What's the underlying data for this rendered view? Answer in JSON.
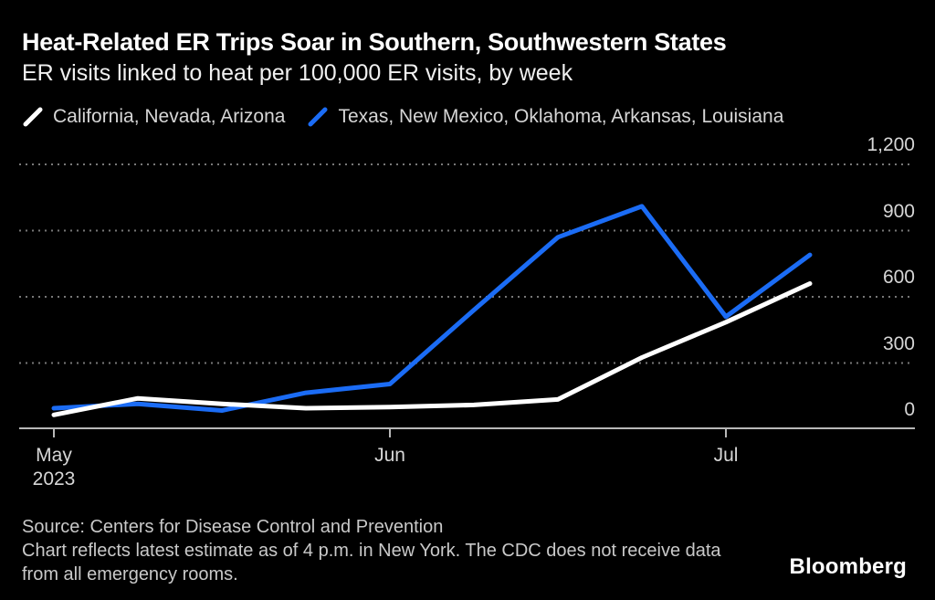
{
  "header": {
    "title": "Heat-Related ER Trips Soar in Southern, Southwestern States",
    "subtitle": "ER visits linked to heat per 100,000 ER visits, by week"
  },
  "legend": {
    "items": [
      {
        "label": "California, Nevada, Arizona",
        "color": "#ffffff"
      },
      {
        "label": "Texas, New Mexico, Oklahoma, Arkansas, Louisiana",
        "color": "#1b6cf5"
      }
    ]
  },
  "chart_data": {
    "type": "line",
    "title": "Heat-Related ER Trips Soar in Southern, Southwestern States",
    "subtitle": "ER visits linked to heat per 100,000 ER visits, by week",
    "x_unit": "week",
    "n_points": 10,
    "series": [
      {
        "name": "California, Nevada, Arizona",
        "color": "#ffffff",
        "values": [
          65,
          140,
          115,
          95,
          100,
          110,
          135,
          325,
          485,
          660
        ]
      },
      {
        "name": "Texas, New Mexico, Oklahoma, Arkansas, Louisiana",
        "color": "#1b6cf5",
        "values": [
          95,
          115,
          85,
          165,
          205,
          540,
          870,
          1010,
          510,
          790
        ]
      }
    ],
    "y_axis": {
      "side": "right",
      "range": [
        0,
        1200
      ],
      "ticks": [
        {
          "value": 0,
          "label": "0"
        },
        {
          "value": 300,
          "label": "300"
        },
        {
          "value": 600,
          "label": "600"
        },
        {
          "value": 900,
          "label": "900"
        },
        {
          "value": 1200,
          "label": "1,200"
        }
      ],
      "gridlines": "dotted"
    },
    "x_axis": {
      "ticks": [
        {
          "label": "May",
          "sublabel": "2023",
          "index": 0
        },
        {
          "label": "Jun",
          "sublabel": "",
          "index": 4
        },
        {
          "label": "Jul",
          "sublabel": "",
          "index": 8
        }
      ]
    },
    "legend_position": "top"
  },
  "footer": {
    "source": "Source: Centers for Disease Control and Prevention",
    "note_line1": "Chart reflects latest estimate as of 4 p.m. in New York. The CDC does not receive data",
    "note_line2": "from all emergency rooms.",
    "brand": "Bloomberg"
  },
  "colors": {
    "background": "#000000",
    "grid": "#787878",
    "axis": "#b8b8b8",
    "tick_label": "#d6d6d6",
    "footer_text": "#c9c9c9"
  }
}
